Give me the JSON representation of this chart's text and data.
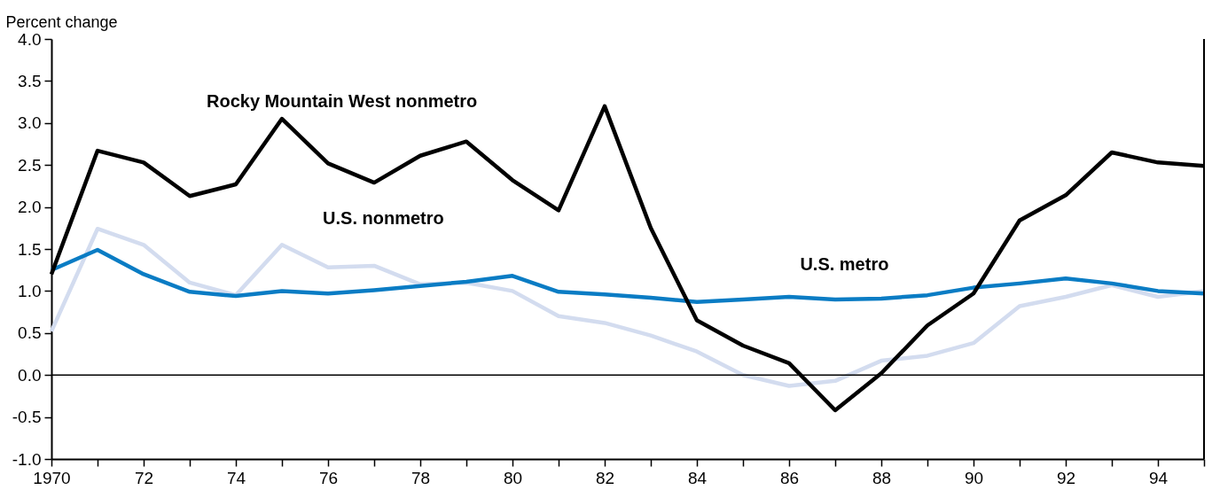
{
  "chart_data": {
    "type": "line",
    "ylabel": "Percent change",
    "x": [
      1970,
      1971,
      1972,
      1973,
      1974,
      1975,
      1976,
      1977,
      1978,
      1979,
      1980,
      1981,
      1982,
      1983,
      1984,
      1985,
      1986,
      1987,
      1988,
      1989,
      1990,
      1991,
      1992,
      1993,
      1994,
      1995
    ],
    "series": [
      {
        "name": "U.S. nonmetro",
        "color": "#d3dcef",
        "values": [
          0.52,
          1.74,
          1.55,
          1.1,
          0.95,
          1.55,
          1.28,
          1.3,
          1.08,
          1.1,
          1.0,
          0.7,
          0.62,
          0.47,
          0.28,
          0.0,
          -0.13,
          -0.07,
          0.17,
          0.23,
          0.38,
          0.82,
          0.93,
          1.07,
          0.93,
          1.0
        ]
      },
      {
        "name": "U.S. metro",
        "color": "#0a7cc4",
        "values": [
          1.25,
          1.49,
          1.2,
          0.99,
          0.94,
          1.0,
          0.97,
          1.01,
          1.06,
          1.11,
          1.18,
          0.99,
          0.96,
          0.92,
          0.87,
          0.9,
          0.93,
          0.9,
          0.91,
          0.95,
          1.04,
          1.09,
          1.15,
          1.09,
          1.0,
          0.97
        ]
      },
      {
        "name": "Rocky Mountain West nonmetro",
        "color": "#000000",
        "values": [
          1.2,
          2.67,
          2.53,
          2.13,
          2.27,
          3.05,
          2.52,
          2.29,
          2.61,
          2.78,
          2.32,
          1.96,
          3.2,
          1.75,
          0.65,
          0.35,
          0.14,
          -0.42,
          0.02,
          0.59,
          0.97,
          1.84,
          2.14,
          2.65,
          2.53,
          2.49
        ]
      }
    ],
    "xlim": [
      1970,
      1995
    ],
    "xticks": [
      {
        "value": 1970,
        "label": "1970"
      },
      {
        "value": 1971,
        "label": null
      },
      {
        "value": 1972,
        "label": "72"
      },
      {
        "value": 1973,
        "label": null
      },
      {
        "value": 1974,
        "label": "74"
      },
      {
        "value": 1975,
        "label": null
      },
      {
        "value": 1976,
        "label": "76"
      },
      {
        "value": 1977,
        "label": null
      },
      {
        "value": 1978,
        "label": "78"
      },
      {
        "value": 1979,
        "label": null
      },
      {
        "value": 1980,
        "label": "80"
      },
      {
        "value": 1981,
        "label": null
      },
      {
        "value": 1982,
        "label": "82"
      },
      {
        "value": 1983,
        "label": null
      },
      {
        "value": 1984,
        "label": "84"
      },
      {
        "value": 1985,
        "label": null
      },
      {
        "value": 1986,
        "label": "86"
      },
      {
        "value": 1987,
        "label": null
      },
      {
        "value": 1988,
        "label": "88"
      },
      {
        "value": 1989,
        "label": null
      },
      {
        "value": 1990,
        "label": "90"
      },
      {
        "value": 1991,
        "label": null
      },
      {
        "value": 1992,
        "label": "92"
      },
      {
        "value": 1993,
        "label": null
      },
      {
        "value": 1994,
        "label": "94"
      },
      {
        "value": 1995,
        "label": null
      }
    ],
    "ylim": [
      -1.0,
      4.0
    ],
    "yticks": [
      {
        "value": -1,
        "label": "-1.0"
      },
      {
        "value": -0.5,
        "label": "-0.5"
      },
      {
        "value": 0,
        "label": "0.0"
      },
      {
        "value": 0.5,
        "label": "0.5"
      },
      {
        "value": 1,
        "label": "1.0"
      },
      {
        "value": 1.5,
        "label": "1.5"
      },
      {
        "value": 2,
        "label": "2.0"
      },
      {
        "value": 2.5,
        "label": "2.5"
      },
      {
        "value": 3,
        "label": "3.0"
      },
      {
        "value": 3.5,
        "label": "3.5"
      },
      {
        "value": 4,
        "label": "4.0"
      }
    ],
    "ref_lines": [
      {
        "axis": "y",
        "value": 0,
        "color": "#000000"
      }
    ],
    "grid": false,
    "legend": false,
    "marker": "none",
    "line_style": "solid"
  }
}
